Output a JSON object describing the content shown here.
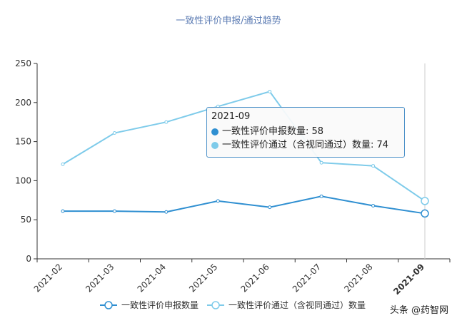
{
  "chart_data": {
    "type": "line",
    "title": "一致性评价申报/通过趋势",
    "categories": [
      "2021-02",
      "2021-03",
      "2021-04",
      "2021-05",
      "2021-06",
      "2021-07",
      "2021-08",
      "2021-09"
    ],
    "series": [
      {
        "name": "一致性评价申报数量",
        "values": [
          61,
          61,
          60,
          74,
          66,
          80,
          68,
          58
        ],
        "color": "#2f8fd1"
      },
      {
        "name": "一致性评价通过（含视同通过）数量",
        "values": [
          121,
          161,
          175,
          195,
          214,
          123,
          119,
          74
        ],
        "color": "#7ecbea"
      }
    ],
    "ylim": [
      0,
      250
    ],
    "yticks": [
      0,
      50,
      100,
      150,
      200,
      250
    ],
    "grid": false,
    "legend": "bottom",
    "highlight_index": 7
  },
  "tooltip": {
    "header": "2021-09",
    "rows": [
      {
        "label": "一致性评价申报数量: 58"
      },
      {
        "label": "一致性评价通过（含视同通过）数量: 74"
      }
    ]
  },
  "watermark": "头条 @药智网"
}
